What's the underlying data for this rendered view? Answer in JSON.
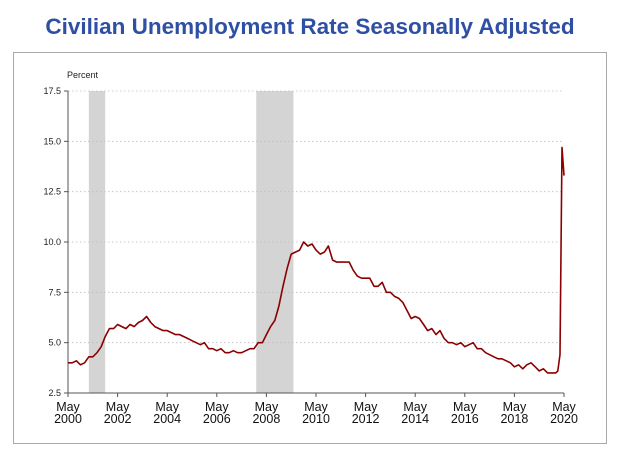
{
  "chart_data": {
    "type": "line",
    "title": "Civilian Unemployment Rate Seasonally Adjusted",
    "ylabel": "Percent",
    "ylim": [
      2.5,
      17.5
    ],
    "yticks": [
      2.5,
      5.0,
      7.5,
      10.0,
      12.5,
      15.0,
      17.5
    ],
    "ytick_labels": [
      "2.5",
      "5.0",
      "7.5",
      "10.0",
      "12.5",
      "15.0",
      "17.5"
    ],
    "xlim": [
      2000.33,
      2020.33
    ],
    "xticks": [
      {
        "x": 2000.33,
        "month": "May",
        "year": "2000"
      },
      {
        "x": 2002.33,
        "month": "May",
        "year": "2002"
      },
      {
        "x": 2004.33,
        "month": "May",
        "year": "2004"
      },
      {
        "x": 2006.33,
        "month": "May",
        "year": "2006"
      },
      {
        "x": 2008.33,
        "month": "May",
        "year": "2008"
      },
      {
        "x": 2010.33,
        "month": "May",
        "year": "2010"
      },
      {
        "x": 2012.33,
        "month": "May",
        "year": "2012"
      },
      {
        "x": 2014.33,
        "month": "May",
        "year": "2014"
      },
      {
        "x": 2016.33,
        "month": "May",
        "year": "2016"
      },
      {
        "x": 2018.33,
        "month": "May",
        "year": "2018"
      },
      {
        "x": 2020.33,
        "month": "May",
        "year": "2020"
      }
    ],
    "grid": true,
    "recessions": [
      [
        2001.17,
        2001.83
      ],
      [
        2007.92,
        2009.42
      ]
    ],
    "series": [
      {
        "color": "#8b0000",
        "points": [
          [
            2000.33,
            4.0
          ],
          [
            2000.5,
            4.0
          ],
          [
            2000.67,
            4.1
          ],
          [
            2000.83,
            3.9
          ],
          [
            2001.0,
            4.0
          ],
          [
            2001.17,
            4.3
          ],
          [
            2001.33,
            4.3
          ],
          [
            2001.5,
            4.5
          ],
          [
            2001.67,
            4.8
          ],
          [
            2001.83,
            5.3
          ],
          [
            2002.0,
            5.7
          ],
          [
            2002.17,
            5.7
          ],
          [
            2002.33,
            5.9
          ],
          [
            2002.5,
            5.8
          ],
          [
            2002.67,
            5.7
          ],
          [
            2002.83,
            5.9
          ],
          [
            2003.0,
            5.8
          ],
          [
            2003.17,
            6.0
          ],
          [
            2003.33,
            6.1
          ],
          [
            2003.5,
            6.3
          ],
          [
            2003.67,
            6.0
          ],
          [
            2003.83,
            5.8
          ],
          [
            2004.0,
            5.7
          ],
          [
            2004.17,
            5.6
          ],
          [
            2004.33,
            5.6
          ],
          [
            2004.5,
            5.5
          ],
          [
            2004.67,
            5.4
          ],
          [
            2004.83,
            5.4
          ],
          [
            2005.0,
            5.3
          ],
          [
            2005.17,
            5.2
          ],
          [
            2005.33,
            5.1
          ],
          [
            2005.5,
            5.0
          ],
          [
            2005.67,
            4.9
          ],
          [
            2005.83,
            5.0
          ],
          [
            2006.0,
            4.7
          ],
          [
            2006.17,
            4.7
          ],
          [
            2006.33,
            4.6
          ],
          [
            2006.5,
            4.7
          ],
          [
            2006.67,
            4.5
          ],
          [
            2006.83,
            4.5
          ],
          [
            2007.0,
            4.6
          ],
          [
            2007.17,
            4.5
          ],
          [
            2007.33,
            4.5
          ],
          [
            2007.5,
            4.6
          ],
          [
            2007.67,
            4.7
          ],
          [
            2007.83,
            4.7
          ],
          [
            2008.0,
            5.0
          ],
          [
            2008.17,
            5.0
          ],
          [
            2008.33,
            5.4
          ],
          [
            2008.5,
            5.8
          ],
          [
            2008.67,
            6.1
          ],
          [
            2008.83,
            6.8
          ],
          [
            2009.0,
            7.8
          ],
          [
            2009.17,
            8.7
          ],
          [
            2009.33,
            9.4
          ],
          [
            2009.5,
            9.5
          ],
          [
            2009.67,
            9.6
          ],
          [
            2009.83,
            10.0
          ],
          [
            2010.0,
            9.8
          ],
          [
            2010.17,
            9.9
          ],
          [
            2010.33,
            9.6
          ],
          [
            2010.5,
            9.4
          ],
          [
            2010.67,
            9.5
          ],
          [
            2010.83,
            9.8
          ],
          [
            2011.0,
            9.1
          ],
          [
            2011.17,
            9.0
          ],
          [
            2011.33,
            9.0
          ],
          [
            2011.5,
            9.0
          ],
          [
            2011.67,
            9.0
          ],
          [
            2011.83,
            8.6
          ],
          [
            2012.0,
            8.3
          ],
          [
            2012.17,
            8.2
          ],
          [
            2012.33,
            8.2
          ],
          [
            2012.5,
            8.2
          ],
          [
            2012.67,
            7.8
          ],
          [
            2012.83,
            7.8
          ],
          [
            2013.0,
            8.0
          ],
          [
            2013.17,
            7.5
          ],
          [
            2013.33,
            7.5
          ],
          [
            2013.5,
            7.3
          ],
          [
            2013.67,
            7.2
          ],
          [
            2013.83,
            7.0
          ],
          [
            2014.0,
            6.6
          ],
          [
            2014.17,
            6.2
          ],
          [
            2014.33,
            6.3
          ],
          [
            2014.5,
            6.2
          ],
          [
            2014.67,
            5.9
          ],
          [
            2014.83,
            5.6
          ],
          [
            2015.0,
            5.7
          ],
          [
            2015.17,
            5.4
          ],
          [
            2015.33,
            5.6
          ],
          [
            2015.5,
            5.2
          ],
          [
            2015.67,
            5.0
          ],
          [
            2015.83,
            5.0
          ],
          [
            2016.0,
            4.9
          ],
          [
            2016.17,
            5.0
          ],
          [
            2016.33,
            4.8
          ],
          [
            2016.5,
            4.9
          ],
          [
            2016.67,
            5.0
          ],
          [
            2016.83,
            4.7
          ],
          [
            2017.0,
            4.7
          ],
          [
            2017.17,
            4.5
          ],
          [
            2017.33,
            4.4
          ],
          [
            2017.5,
            4.3
          ],
          [
            2017.67,
            4.2
          ],
          [
            2017.83,
            4.2
          ],
          [
            2018.0,
            4.1
          ],
          [
            2018.17,
            4.0
          ],
          [
            2018.33,
            3.8
          ],
          [
            2018.5,
            3.9
          ],
          [
            2018.67,
            3.7
          ],
          [
            2018.83,
            3.9
          ],
          [
            2019.0,
            4.0
          ],
          [
            2019.17,
            3.8
          ],
          [
            2019.33,
            3.6
          ],
          [
            2019.5,
            3.7
          ],
          [
            2019.67,
            3.5
          ],
          [
            2019.83,
            3.5
          ],
          [
            2020.0,
            3.5
          ],
          [
            2020.08,
            3.6
          ],
          [
            2020.17,
            4.4
          ],
          [
            2020.25,
            14.7
          ],
          [
            2020.33,
            13.3
          ]
        ]
      }
    ]
  }
}
